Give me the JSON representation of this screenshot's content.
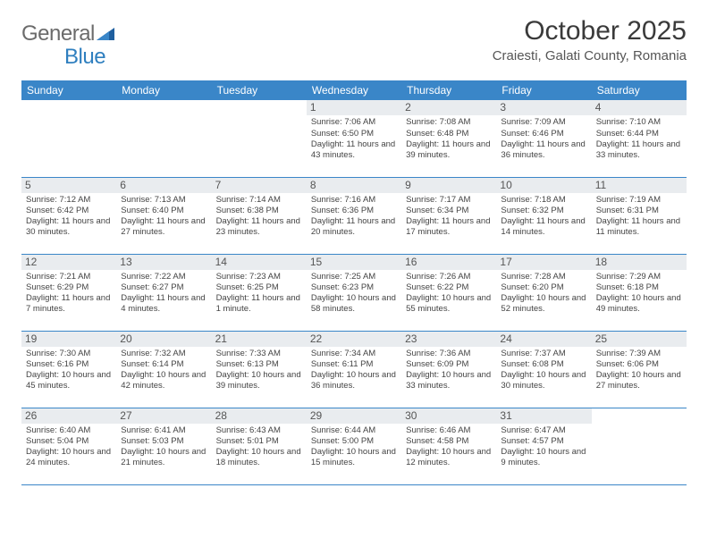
{
  "logo": {
    "word1": "General",
    "word2": "Blue"
  },
  "title": "October 2025",
  "location": "Craiesti, Galati County, Romania",
  "colors": {
    "header_bg": "#3a86c8",
    "header_text": "#ffffff",
    "daynum_bg": "#e9ecef",
    "border": "#3a86c8",
    "logo_gray": "#6b6b6b",
    "logo_blue": "#2f7fbf"
  },
  "days": [
    "Sunday",
    "Monday",
    "Tuesday",
    "Wednesday",
    "Thursday",
    "Friday",
    "Saturday"
  ],
  "weeks": [
    [
      {
        "n": "",
        "lines": []
      },
      {
        "n": "",
        "lines": []
      },
      {
        "n": "",
        "lines": []
      },
      {
        "n": "1",
        "lines": [
          "Sunrise: 7:06 AM",
          "Sunset: 6:50 PM",
          "Daylight: 11 hours and 43 minutes."
        ]
      },
      {
        "n": "2",
        "lines": [
          "Sunrise: 7:08 AM",
          "Sunset: 6:48 PM",
          "Daylight: 11 hours and 39 minutes."
        ]
      },
      {
        "n": "3",
        "lines": [
          "Sunrise: 7:09 AM",
          "Sunset: 6:46 PM",
          "Daylight: 11 hours and 36 minutes."
        ]
      },
      {
        "n": "4",
        "lines": [
          "Sunrise: 7:10 AM",
          "Sunset: 6:44 PM",
          "Daylight: 11 hours and 33 minutes."
        ]
      }
    ],
    [
      {
        "n": "5",
        "lines": [
          "Sunrise: 7:12 AM",
          "Sunset: 6:42 PM",
          "Daylight: 11 hours and 30 minutes."
        ]
      },
      {
        "n": "6",
        "lines": [
          "Sunrise: 7:13 AM",
          "Sunset: 6:40 PM",
          "Daylight: 11 hours and 27 minutes."
        ]
      },
      {
        "n": "7",
        "lines": [
          "Sunrise: 7:14 AM",
          "Sunset: 6:38 PM",
          "Daylight: 11 hours and 23 minutes."
        ]
      },
      {
        "n": "8",
        "lines": [
          "Sunrise: 7:16 AM",
          "Sunset: 6:36 PM",
          "Daylight: 11 hours and 20 minutes."
        ]
      },
      {
        "n": "9",
        "lines": [
          "Sunrise: 7:17 AM",
          "Sunset: 6:34 PM",
          "Daylight: 11 hours and 17 minutes."
        ]
      },
      {
        "n": "10",
        "lines": [
          "Sunrise: 7:18 AM",
          "Sunset: 6:32 PM",
          "Daylight: 11 hours and 14 minutes."
        ]
      },
      {
        "n": "11",
        "lines": [
          "Sunrise: 7:19 AM",
          "Sunset: 6:31 PM",
          "Daylight: 11 hours and 11 minutes."
        ]
      }
    ],
    [
      {
        "n": "12",
        "lines": [
          "Sunrise: 7:21 AM",
          "Sunset: 6:29 PM",
          "Daylight: 11 hours and 7 minutes."
        ]
      },
      {
        "n": "13",
        "lines": [
          "Sunrise: 7:22 AM",
          "Sunset: 6:27 PM",
          "Daylight: 11 hours and 4 minutes."
        ]
      },
      {
        "n": "14",
        "lines": [
          "Sunrise: 7:23 AM",
          "Sunset: 6:25 PM",
          "Daylight: 11 hours and 1 minute."
        ]
      },
      {
        "n": "15",
        "lines": [
          "Sunrise: 7:25 AM",
          "Sunset: 6:23 PM",
          "Daylight: 10 hours and 58 minutes."
        ]
      },
      {
        "n": "16",
        "lines": [
          "Sunrise: 7:26 AM",
          "Sunset: 6:22 PM",
          "Daylight: 10 hours and 55 minutes."
        ]
      },
      {
        "n": "17",
        "lines": [
          "Sunrise: 7:28 AM",
          "Sunset: 6:20 PM",
          "Daylight: 10 hours and 52 minutes."
        ]
      },
      {
        "n": "18",
        "lines": [
          "Sunrise: 7:29 AM",
          "Sunset: 6:18 PM",
          "Daylight: 10 hours and 49 minutes."
        ]
      }
    ],
    [
      {
        "n": "19",
        "lines": [
          "Sunrise: 7:30 AM",
          "Sunset: 6:16 PM",
          "Daylight: 10 hours and 45 minutes."
        ]
      },
      {
        "n": "20",
        "lines": [
          "Sunrise: 7:32 AM",
          "Sunset: 6:14 PM",
          "Daylight: 10 hours and 42 minutes."
        ]
      },
      {
        "n": "21",
        "lines": [
          "Sunrise: 7:33 AM",
          "Sunset: 6:13 PM",
          "Daylight: 10 hours and 39 minutes."
        ]
      },
      {
        "n": "22",
        "lines": [
          "Sunrise: 7:34 AM",
          "Sunset: 6:11 PM",
          "Daylight: 10 hours and 36 minutes."
        ]
      },
      {
        "n": "23",
        "lines": [
          "Sunrise: 7:36 AM",
          "Sunset: 6:09 PM",
          "Daylight: 10 hours and 33 minutes."
        ]
      },
      {
        "n": "24",
        "lines": [
          "Sunrise: 7:37 AM",
          "Sunset: 6:08 PM",
          "Daylight: 10 hours and 30 minutes."
        ]
      },
      {
        "n": "25",
        "lines": [
          "Sunrise: 7:39 AM",
          "Sunset: 6:06 PM",
          "Daylight: 10 hours and 27 minutes."
        ]
      }
    ],
    [
      {
        "n": "26",
        "lines": [
          "Sunrise: 6:40 AM",
          "Sunset: 5:04 PM",
          "Daylight: 10 hours and 24 minutes."
        ]
      },
      {
        "n": "27",
        "lines": [
          "Sunrise: 6:41 AM",
          "Sunset: 5:03 PM",
          "Daylight: 10 hours and 21 minutes."
        ]
      },
      {
        "n": "28",
        "lines": [
          "Sunrise: 6:43 AM",
          "Sunset: 5:01 PM",
          "Daylight: 10 hours and 18 minutes."
        ]
      },
      {
        "n": "29",
        "lines": [
          "Sunrise: 6:44 AM",
          "Sunset: 5:00 PM",
          "Daylight: 10 hours and 15 minutes."
        ]
      },
      {
        "n": "30",
        "lines": [
          "Sunrise: 6:46 AM",
          "Sunset: 4:58 PM",
          "Daylight: 10 hours and 12 minutes."
        ]
      },
      {
        "n": "31",
        "lines": [
          "Sunrise: 6:47 AM",
          "Sunset: 4:57 PM",
          "Daylight: 10 hours and 9 minutes."
        ]
      },
      {
        "n": "",
        "lines": []
      }
    ]
  ]
}
